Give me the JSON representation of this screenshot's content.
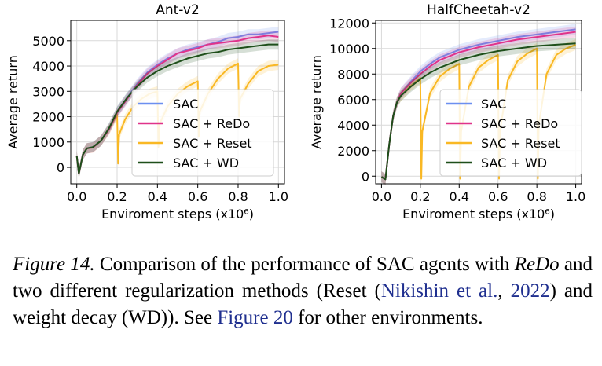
{
  "chart_data": [
    {
      "type": "line",
      "title": "Ant-v2",
      "xlabel": "Enviroment steps (x10⁶)",
      "ylabel": "Average return",
      "xlim": [
        -0.03,
        1.03
      ],
      "ylim": [
        -650,
        5800
      ],
      "xticks": [
        "0.0",
        "0.2",
        "0.4",
        "0.6",
        "0.8",
        "1.0"
      ],
      "yticks": [
        "0",
        "1000",
        "2000",
        "3000",
        "4000",
        "5000"
      ],
      "grid": true,
      "legend_position": "lower-right",
      "series": [
        {
          "name": "SAC",
          "color": "#6c8ff0",
          "x": [
            0,
            0.01,
            0.03,
            0.05,
            0.08,
            0.12,
            0.16,
            0.2,
            0.25,
            0.3,
            0.35,
            0.4,
            0.45,
            0.5,
            0.55,
            0.6,
            0.65,
            0.7,
            0.75,
            0.8,
            0.85,
            0.9,
            0.95,
            1.0
          ],
          "y": [
            450,
            -250,
            500,
            750,
            800,
            1050,
            1550,
            2200,
            2750,
            3300,
            3750,
            4050,
            4300,
            4500,
            4650,
            4750,
            4850,
            4950,
            5100,
            5150,
            5250,
            5250,
            5300,
            5350
          ]
        },
        {
          "name": "SAC + ReDo",
          "color": "#e0338a",
          "x": [
            0,
            0.01,
            0.03,
            0.05,
            0.08,
            0.12,
            0.16,
            0.2,
            0.25,
            0.3,
            0.35,
            0.4,
            0.45,
            0.5,
            0.55,
            0.6,
            0.65,
            0.7,
            0.75,
            0.8,
            0.85,
            0.9,
            0.95,
            1.0
          ],
          "y": [
            450,
            -250,
            500,
            750,
            780,
            1050,
            1500,
            2150,
            2700,
            3250,
            3700,
            4000,
            4250,
            4500,
            4600,
            4700,
            4850,
            4900,
            4950,
            5000,
            5100,
            5150,
            5200,
            5150
          ]
        },
        {
          "name": "SAC + Reset",
          "color": "#f9b824",
          "x": [
            0,
            0.01,
            0.03,
            0.05,
            0.08,
            0.12,
            0.16,
            0.2,
            0.205,
            0.21,
            0.24,
            0.28,
            0.32,
            0.36,
            0.4,
            0.405,
            0.41,
            0.45,
            0.5,
            0.55,
            0.6,
            0.605,
            0.61,
            0.65,
            0.7,
            0.75,
            0.8,
            0.805,
            0.81,
            0.85,
            0.9,
            0.95,
            1.0
          ],
          "y": [
            450,
            -250,
            500,
            750,
            780,
            1050,
            1500,
            2100,
            150,
            1300,
            1900,
            2400,
            2700,
            2900,
            3000,
            800,
            1700,
            2400,
            2900,
            3200,
            3400,
            1200,
            2200,
            2900,
            3500,
            3900,
            4100,
            2000,
            2700,
            3300,
            3800,
            4000,
            4050
          ]
        },
        {
          "name": "SAC + WD",
          "color": "#1e4f1a",
          "x": [
            0,
            0.01,
            0.03,
            0.05,
            0.08,
            0.12,
            0.16,
            0.2,
            0.25,
            0.3,
            0.35,
            0.4,
            0.45,
            0.5,
            0.55,
            0.6,
            0.65,
            0.7,
            0.75,
            0.8,
            0.85,
            0.9,
            0.95,
            1.0
          ],
          "y": [
            450,
            -250,
            500,
            750,
            800,
            1050,
            1550,
            2200,
            2750,
            3200,
            3550,
            3800,
            4000,
            4150,
            4300,
            4400,
            4500,
            4550,
            4650,
            4700,
            4750,
            4800,
            4850,
            4850
          ]
        }
      ]
    },
    {
      "type": "line",
      "title": "HalfCheetah-v2",
      "xlabel": "Enviroment steps (x10⁶)",
      "ylabel": "Average return",
      "xlim": [
        -0.03,
        1.03
      ],
      "ylim": [
        -600,
        12200
      ],
      "xticks": [
        "0.0",
        "0.2",
        "0.4",
        "0.6",
        "0.8",
        "1.0"
      ],
      "yticks": [
        "0",
        "2000",
        "4000",
        "6000",
        "8000",
        "10000",
        "12000"
      ],
      "grid": true,
      "legend_position": "lower-right",
      "series": [
        {
          "name": "SAC",
          "color": "#6c8ff0",
          "x": [
            0,
            0.02,
            0.04,
            0.06,
            0.08,
            0.1,
            0.15,
            0.2,
            0.25,
            0.3,
            0.4,
            0.5,
            0.6,
            0.7,
            0.8,
            0.9,
            1.0
          ],
          "y": [
            -50,
            -250,
            2500,
            4700,
            5800,
            6500,
            7400,
            8200,
            8800,
            9300,
            9900,
            10300,
            10600,
            10900,
            11100,
            11300,
            11500
          ]
        },
        {
          "name": "SAC + ReDo",
          "color": "#e0338a",
          "x": [
            0,
            0.02,
            0.04,
            0.06,
            0.08,
            0.1,
            0.15,
            0.2,
            0.25,
            0.3,
            0.4,
            0.5,
            0.6,
            0.7,
            0.8,
            0.9,
            1.0
          ],
          "y": [
            -50,
            -250,
            2500,
            4700,
            5800,
            6500,
            7300,
            8000,
            8600,
            9100,
            9700,
            10100,
            10400,
            10700,
            10900,
            11100,
            11300
          ]
        },
        {
          "name": "SAC + Reset",
          "color": "#f9b824",
          "x": [
            0,
            0.02,
            0.04,
            0.06,
            0.08,
            0.1,
            0.15,
            0.2,
            0.205,
            0.21,
            0.25,
            0.3,
            0.35,
            0.4,
            0.405,
            0.41,
            0.45,
            0.5,
            0.55,
            0.6,
            0.605,
            0.61,
            0.65,
            0.7,
            0.75,
            0.8,
            0.805,
            0.81,
            0.85,
            0.9,
            0.95,
            1.0
          ],
          "y": [
            -50,
            -250,
            2500,
            4700,
            5800,
            6300,
            7100,
            7700,
            -200,
            3500,
            6500,
            7800,
            8400,
            8800,
            -200,
            3500,
            7000,
            8500,
            9100,
            9500,
            -200,
            3500,
            7500,
            9000,
            9600,
            10000,
            -200,
            4000,
            8000,
            9500,
            10000,
            10300
          ]
        },
        {
          "name": "SAC + WD",
          "color": "#1e4f1a",
          "x": [
            0,
            0.02,
            0.04,
            0.06,
            0.08,
            0.1,
            0.15,
            0.2,
            0.25,
            0.3,
            0.4,
            0.5,
            0.6,
            0.7,
            0.8,
            0.9,
            1.0
          ],
          "y": [
            -50,
            -250,
            2500,
            4700,
            5800,
            6300,
            7000,
            7600,
            8100,
            8500,
            9100,
            9500,
            9800,
            10000,
            10200,
            10300,
            10400
          ]
        }
      ]
    }
  ],
  "caption": {
    "label": "Figure 14.",
    "part1": " Comparison of the performance of SAC agents with ",
    "redo": "ReDo",
    "part2": " and two different regularization methods (Reset (",
    "cite_author": "Nikishin et al.",
    "part3": ", ",
    "cite_year": "2022",
    "part4": ") and weight decay (WD)). See ",
    "figref": "Figure 20",
    "part5": " for other environments."
  }
}
